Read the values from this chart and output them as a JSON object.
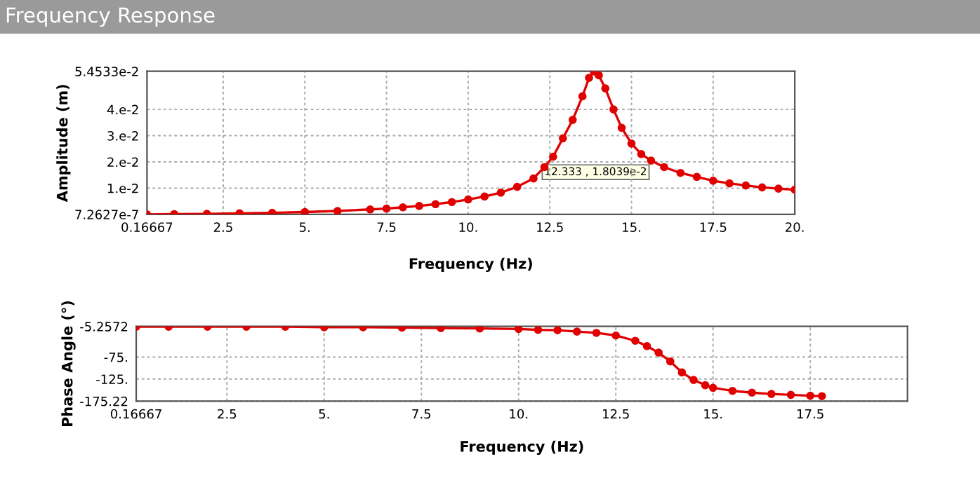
{
  "chart_data": [
    {
      "type": "line",
      "title": "Frequency Response",
      "xlabel": "Frequency (Hz)",
      "ylabel": "Amplitude (m)",
      "xlim": [
        0.16667,
        20
      ],
      "xticks": [
        0.16667,
        2.5,
        {
          "value": 5,
          "label": "5."
        },
        7.5,
        {
          "value": 10,
          "label": "10."
        },
        12.5,
        {
          "value": 15,
          "label": "15."
        },
        17.5,
        {
          "value": 20,
          "label": "20."
        }
      ],
      "ylim": [
        7.2627e-07,
        0.054533
      ],
      "yticks": [
        {
          "value": 7.2627e-07,
          "label": "7.2627e-7"
        },
        {
          "value": 0.01,
          "label": "1.e-2"
        },
        {
          "value": 0.02,
          "label": "2.e-2"
        },
        {
          "value": 0.03,
          "label": "3.e-2"
        },
        {
          "value": 0.04,
          "label": "4.e-2"
        },
        {
          "value": 0.054533,
          "label": "5.4533e-2"
        }
      ],
      "grid": true,
      "marker": "circle",
      "line_style": "solid",
      "legend": false,
      "annotations": [
        {
          "text": "12.333 , 1.8039e-2",
          "x": 12.333,
          "y": 0.018039
        }
      ],
      "series": [
        {
          "color": "#e00000",
          "x": [
            0.16667,
            1,
            2,
            3,
            4,
            5,
            6,
            7,
            7.5,
            8,
            8.5,
            9,
            9.5,
            10,
            10.5,
            11,
            11.5,
            12,
            12.333,
            12.6,
            12.9,
            13.2,
            13.5,
            13.7,
            13.85,
            14.0,
            14.2,
            14.45,
            14.7,
            15,
            15.3,
            15.6,
            16,
            16.5,
            17,
            17.5,
            18,
            18.5,
            19,
            19.5,
            20
          ],
          "values": [
            1e-06,
            0.0001,
            0.0002,
            0.0004,
            0.0006,
            0.0009,
            0.0013,
            0.0019,
            0.0022,
            0.0027,
            0.0032,
            0.0039,
            0.0047,
            0.0057,
            0.0068,
            0.0083,
            0.0105,
            0.0137,
            0.018,
            0.022,
            0.029,
            0.036,
            0.045,
            0.052,
            0.0545,
            0.053,
            0.048,
            0.04,
            0.033,
            0.027,
            0.023,
            0.0205,
            0.018,
            0.0158,
            0.0143,
            0.0128,
            0.0118,
            0.011,
            0.0103,
            0.0098,
            0.0094
          ]
        }
      ]
    },
    {
      "type": "line",
      "xlabel": "Frequency (Hz)",
      "ylabel": "Phase Angle (°)",
      "xlim": [
        0.16667,
        20
      ],
      "xticks": [
        0.16667,
        2.5,
        {
          "value": 5,
          "label": "5."
        },
        7.5,
        {
          "value": 10,
          "label": "10."
        },
        12.5,
        {
          "value": 15,
          "label": "15."
        },
        17.5
      ],
      "ylim": [
        -175.22,
        -5.2572
      ],
      "yticks": [
        -175.22,
        {
          "value": -125,
          "label": "-125."
        },
        {
          "value": -75,
          "label": "-75."
        },
        -5.2572
      ],
      "grid": true,
      "marker": "circle",
      "line_style": "solid",
      "legend": false,
      "series": [
        {
          "color": "#e00000",
          "x": [
            0.16667,
            1,
            2,
            3,
            4,
            5,
            6,
            7,
            8,
            9,
            10,
            10.5,
            11,
            11.5,
            12,
            12.5,
            13,
            13.3,
            13.6,
            13.9,
            14.2,
            14.5,
            14.8,
            15,
            15.5,
            16,
            16.5,
            17,
            17.5,
            17.8
          ],
          "values": [
            -6,
            -6,
            -6,
            -6,
            -6,
            -7,
            -7,
            -8,
            -9,
            -10,
            -11,
            -13,
            -14,
            -17,
            -20,
            -26,
            -38,
            -50,
            -65,
            -85,
            -110,
            -127,
            -139,
            -145,
            -152,
            -156,
            -159,
            -161,
            -163,
            -164
          ]
        }
      ]
    }
  ]
}
